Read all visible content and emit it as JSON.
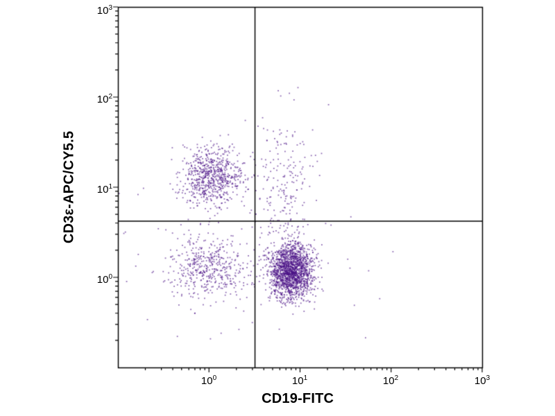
{
  "figure": {
    "background": "#ffffff",
    "axis_color": "#000000",
    "dot_color_rgba": "rgba(74,17,134,0.62)"
  },
  "chart_data": {
    "type": "scatter",
    "title": "",
    "xlabel": "CD19-FITC",
    "ylabel": "CD3ε-APC/CY5.5",
    "x_scale": "log",
    "y_scale": "log",
    "xlim": [
      0.1,
      1000
    ],
    "ylim": [
      0.1,
      1000
    ],
    "grid": false,
    "legend": "none",
    "x_ticks": [
      {
        "base": "10",
        "exp": "0",
        "value": 1
      },
      {
        "base": "10",
        "exp": "1",
        "value": 10
      },
      {
        "base": "10",
        "exp": "2",
        "value": 100
      },
      {
        "base": "10",
        "exp": "3",
        "value": 1000
      }
    ],
    "y_ticks": [
      {
        "base": "10",
        "exp": "0",
        "value": 1
      },
      {
        "base": "10",
        "exp": "1",
        "value": 10
      },
      {
        "base": "10",
        "exp": "2",
        "value": 100
      },
      {
        "base": "10",
        "exp": "3",
        "value": 1000
      }
    ],
    "quadrant_gate": {
      "x": 3.2,
      "y": 4.2
    },
    "clusters": [
      {
        "name": "cd3-positive-upper-left",
        "center_log": [
          0.02,
          1.12
        ],
        "sigma_log": [
          0.17,
          0.16
        ],
        "count": 680
      },
      {
        "name": "double-negative-lower-left",
        "center_log": [
          0.0,
          0.1
        ],
        "sigma_log": [
          0.21,
          0.17
        ],
        "count": 430
      },
      {
        "name": "cd19-positive-lower-right",
        "center_log": [
          0.9,
          0.07
        ],
        "sigma_log": [
          0.12,
          0.15
        ],
        "count": 1700
      },
      {
        "name": "upper-middle-streak",
        "center_log": [
          0.82,
          1.02
        ],
        "sigma_log": [
          0.17,
          0.42
        ],
        "count": 190
      },
      {
        "name": "background-noise",
        "center_log": [
          0.35,
          0.45
        ],
        "sigma_log": [
          0.6,
          0.55
        ],
        "count": 140
      }
    ]
  }
}
